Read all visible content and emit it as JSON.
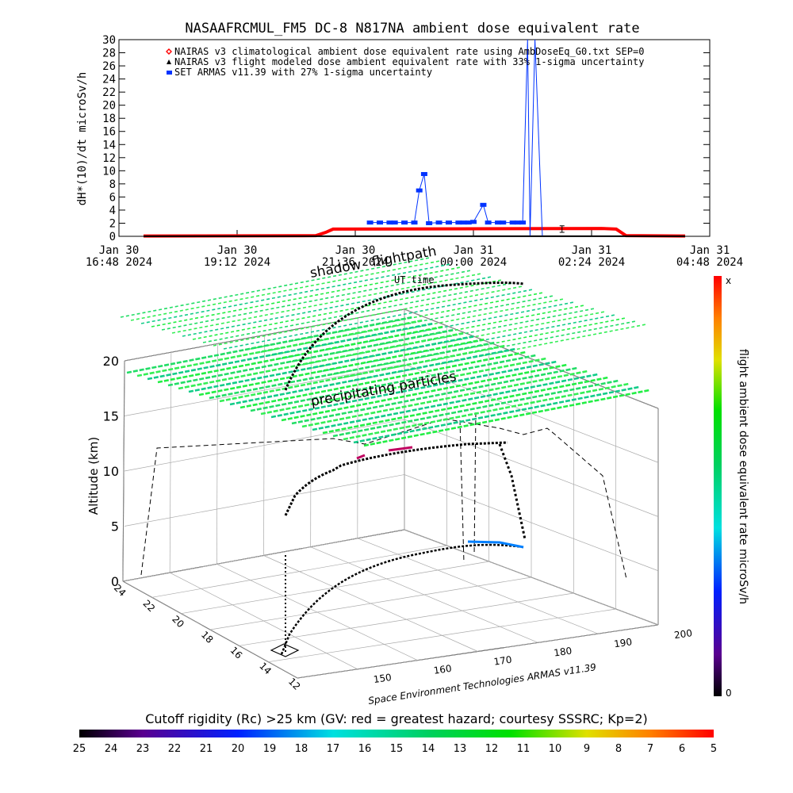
{
  "chart_data": [
    {
      "type": "line",
      "title": "NASAAFRCMUL_FM5 DC-8   N817NA ambient dose equivalent rate",
      "ylabel": "dH*(10)/dt microSv/h",
      "xlabel": "UT time",
      "ylim": [
        0,
        30
      ],
      "yticks": [
        "0",
        "2",
        "4",
        "6",
        "8",
        "10",
        "12",
        "14",
        "16",
        "18",
        "20",
        "22",
        "24",
        "26",
        "28",
        "30"
      ],
      "x_range_hours": [
        0,
        12
      ],
      "xticks": [
        {
          "hours": 0,
          "line1": "Jan 30",
          "line2": "16:48 2024"
        },
        {
          "hours": 2.4,
          "line1": "Jan 30",
          "line2": "19:12 2024"
        },
        {
          "hours": 4.8,
          "line1": "Jan 30",
          "line2": "21:36 2024"
        },
        {
          "hours": 7.2,
          "line1": "Jan 31",
          "line2": "00:00 2024"
        },
        {
          "hours": 9.6,
          "line1": "Jan 31",
          "line2": "02:24 2024"
        },
        {
          "hours": 12,
          "line1": "Jan 31",
          "line2": "04:48 2024"
        }
      ],
      "legend_position": "top-left",
      "series": [
        {
          "name": "NAIRAS v3 climatological ambient dose equivalent rate using AmbDoseEq_G0.txt SEP=0",
          "marker": "diamond",
          "color": "#ff0000",
          "x_hours": [
            0.5,
            4.0,
            4.2,
            4.35,
            9.8,
            10.1,
            10.3,
            11.5
          ],
          "y": [
            0.05,
            0.1,
            0.6,
            1.1,
            1.2,
            1.1,
            0.1,
            0.05
          ]
        },
        {
          "name": "NAIRAS v3 flight modeled dose ambient equivalent rate with 33% 1-sigma uncertainty",
          "marker": "triangle",
          "color": "#000000",
          "x_hours": [
            0.5,
            11.5
          ],
          "y": [
            0.02,
            0.02
          ]
        },
        {
          "name": "SET ARMAS v11.39 with 27% 1-sigma uncertainty",
          "marker": "circle",
          "color": "#0033ff",
          "x_hours": [
            5.1,
            5.3,
            5.5,
            5.6,
            5.8,
            6.0,
            6.1,
            6.2,
            6.3,
            6.5,
            6.7,
            6.9,
            7.0,
            7.1,
            7.2,
            7.4,
            7.5,
            7.7,
            7.8,
            8.0,
            8.1,
            8.2,
            8.3,
            8.35,
            8.45,
            8.6
          ],
          "y": [
            2.1,
            2.1,
            2.1,
            2.1,
            2.1,
            2.1,
            7.0,
            9.5,
            2.0,
            2.1,
            2.1,
            2.1,
            2.1,
            2.1,
            2.2,
            4.8,
            2.1,
            2.1,
            2.1,
            2.1,
            2.1,
            2.1,
            30,
            0.1,
            30,
            0.1
          ]
        }
      ]
    },
    {
      "type": "scatter",
      "zlabel": "Altitude (km)",
      "zticks": [
        "0",
        "5",
        "10",
        "15",
        "20"
      ],
      "yticks": [
        "12",
        "14",
        "16",
        "18",
        "20",
        "22",
        "24"
      ],
      "xticks": [
        "150",
        "160",
        "170",
        "180",
        "190",
        "200"
      ],
      "credit": "Space Environment Technologies ARMAS v11.39",
      "annotations": [
        "shadow",
        "flightpath",
        "precipitating particles"
      ],
      "axis_partial_label": "UT time"
    },
    {
      "type": "heatmap",
      "colorbar_right": {
        "label": "flight ambient dose equivalent rate microSv/h",
        "top": "x",
        "bottom": "0"
      },
      "colorbar_bottom": {
        "title": "Cutoff rigidity (Rc) >25 km (GV: red = greatest hazard; courtesy SSSRC; Kp=2)",
        "ticks": [
          "25",
          "24",
          "23",
          "22",
          "21",
          "20",
          "19",
          "18",
          "17",
          "16",
          "15",
          "14",
          "13",
          "12",
          "11",
          "10",
          "9",
          "8",
          "7",
          "6",
          "5"
        ]
      }
    }
  ]
}
